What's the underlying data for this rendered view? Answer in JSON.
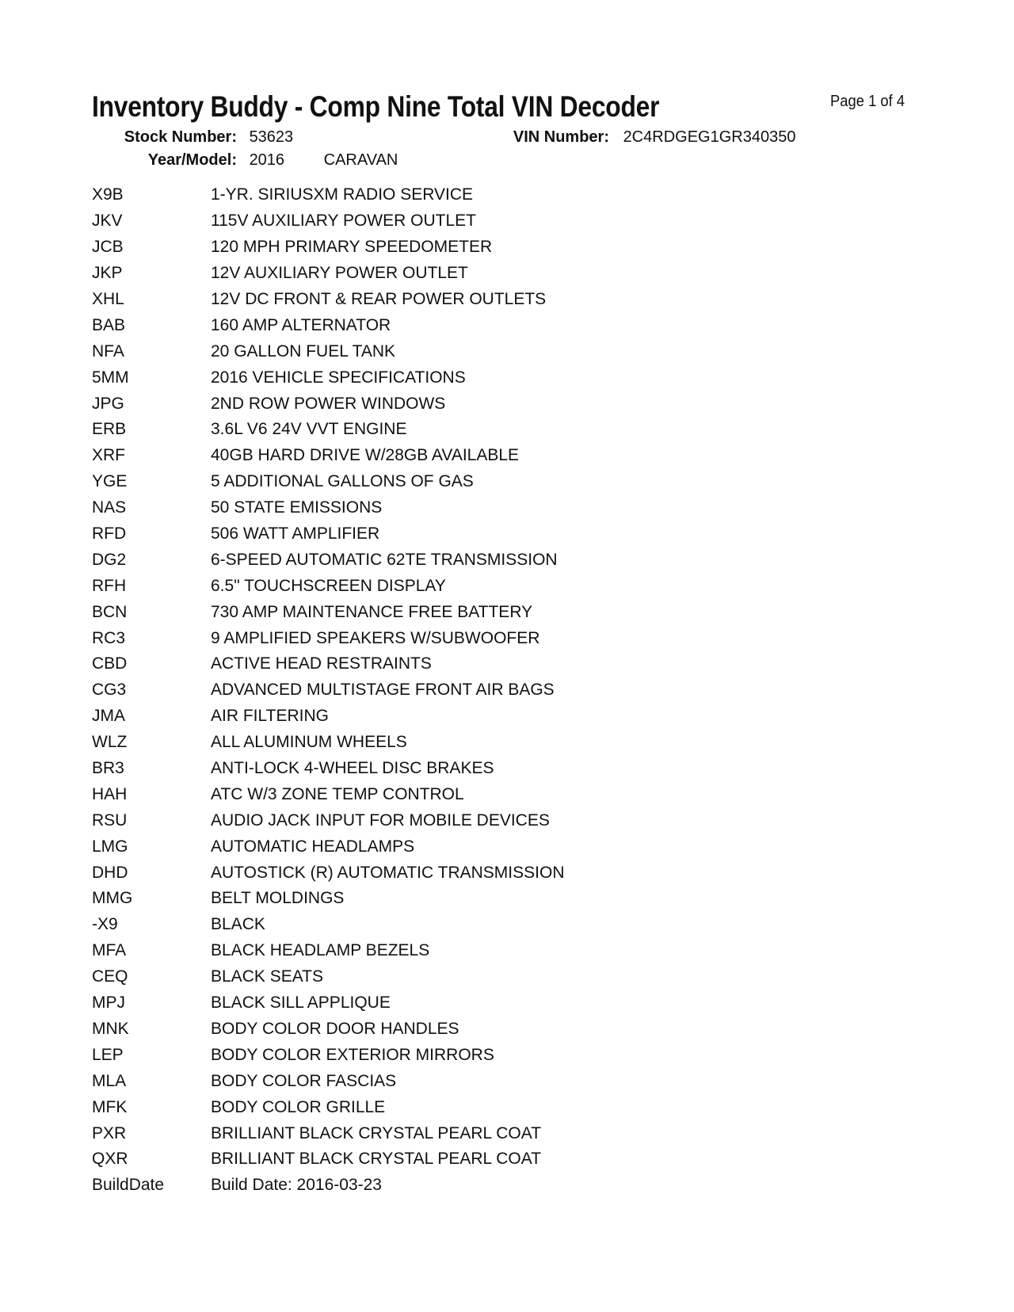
{
  "header": {
    "title": "Inventory Buddy - Comp Nine Total VIN Decoder",
    "page": "Page 1 of 4",
    "stock_label": "Stock Number:",
    "stock_value": "53623",
    "vin_label": "VIN Number:",
    "vin_value": "2C4RDGEG1GR340350",
    "year_model_label": "Year/Model:",
    "year": "2016",
    "model": "CARAVAN"
  },
  "rows": [
    {
      "code": "X9B",
      "desc": "1-YR. SIRIUSXM RADIO SERVICE"
    },
    {
      "code": "JKV",
      "desc": "115V AUXILIARY POWER OUTLET"
    },
    {
      "code": "JCB",
      "desc": "120 MPH PRIMARY SPEEDOMETER"
    },
    {
      "code": "JKP",
      "desc": "12V AUXILIARY POWER OUTLET"
    },
    {
      "code": "XHL",
      "desc": "12V DC FRONT & REAR POWER OUTLETS"
    },
    {
      "code": "BAB",
      "desc": "160 AMP ALTERNATOR"
    },
    {
      "code": "NFA",
      "desc": "20 GALLON FUEL TANK"
    },
    {
      "code": "5MM",
      "desc": "2016 VEHICLE SPECIFICATIONS"
    },
    {
      "code": "JPG",
      "desc": "2ND ROW POWER WINDOWS"
    },
    {
      "code": "ERB",
      "desc": "3.6L V6 24V VVT ENGINE"
    },
    {
      "code": "XRF",
      "desc": "40GB HARD DRIVE W/28GB AVAILABLE"
    },
    {
      "code": "YGE",
      "desc": "5 ADDITIONAL GALLONS OF GAS"
    },
    {
      "code": "NAS",
      "desc": "50 STATE EMISSIONS"
    },
    {
      "code": "RFD",
      "desc": "506 WATT AMPLIFIER"
    },
    {
      "code": "DG2",
      "desc": "6-SPEED AUTOMATIC 62TE TRANSMISSION"
    },
    {
      "code": "RFH",
      "desc": "6.5\" TOUCHSCREEN DISPLAY"
    },
    {
      "code": "BCN",
      "desc": "730 AMP MAINTENANCE FREE BATTERY"
    },
    {
      "code": "RC3",
      "desc": "9 AMPLIFIED SPEAKERS W/SUBWOOFER"
    },
    {
      "code": "CBD",
      "desc": "ACTIVE HEAD RESTRAINTS"
    },
    {
      "code": "CG3",
      "desc": "ADVANCED MULTISTAGE FRONT AIR BAGS"
    },
    {
      "code": "JMA",
      "desc": "AIR FILTERING"
    },
    {
      "code": "WLZ",
      "desc": "ALL ALUMINUM WHEELS"
    },
    {
      "code": "BR3",
      "desc": "ANTI-LOCK 4-WHEEL DISC BRAKES"
    },
    {
      "code": "HAH",
      "desc": "ATC W/3 ZONE TEMP CONTROL"
    },
    {
      "code": "RSU",
      "desc": "AUDIO JACK INPUT FOR MOBILE DEVICES"
    },
    {
      "code": "LMG",
      "desc": "AUTOMATIC HEADLAMPS"
    },
    {
      "code": "DHD",
      "desc": "AUTOSTICK (R) AUTOMATIC TRANSMISSION"
    },
    {
      "code": "MMG",
      "desc": "BELT MOLDINGS"
    },
    {
      "code": "-X9",
      "desc": "BLACK"
    },
    {
      "code": "MFA",
      "desc": "BLACK HEADLAMP BEZELS"
    },
    {
      "code": "CEQ",
      "desc": "BLACK SEATS"
    },
    {
      "code": "MPJ",
      "desc": "BLACK SILL APPLIQUE"
    },
    {
      "code": "MNK",
      "desc": "BODY COLOR DOOR HANDLES"
    },
    {
      "code": "LEP",
      "desc": "BODY COLOR EXTERIOR MIRRORS"
    },
    {
      "code": "MLA",
      "desc": "BODY COLOR FASCIAS"
    },
    {
      "code": "MFK",
      "desc": "BODY COLOR GRILLE"
    },
    {
      "code": "PXR",
      "desc": "BRILLIANT BLACK CRYSTAL PEARL COAT"
    },
    {
      "code": "QXR",
      "desc": "BRILLIANT BLACK CRYSTAL PEARL COAT"
    },
    {
      "code": "BuildDate",
      "desc": "Build Date: 2016-03-23"
    }
  ]
}
